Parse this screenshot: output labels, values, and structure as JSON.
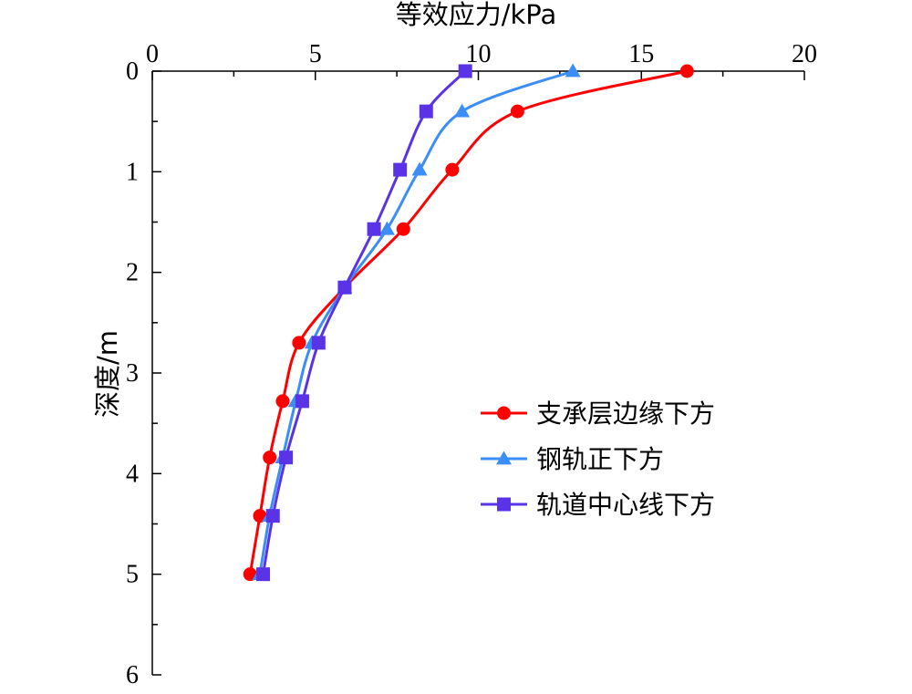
{
  "chart_data": {
    "type": "line",
    "title": "",
    "xlabel": "等效应力/kPa",
    "ylabel": "深度/m",
    "xlim": [
      0,
      20
    ],
    "ylim": [
      0,
      6
    ],
    "y_inverted": true,
    "x_axis_position": "top",
    "x_ticks": [
      "0",
      "5",
      "10",
      "15",
      "20"
    ],
    "y_ticks": [
      "0",
      "1",
      "2",
      "3",
      "4",
      "5",
      "6"
    ],
    "legend_position": "right-center",
    "series": [
      {
        "name": "支承层边缘下方",
        "color": "#ff0000",
        "marker": "circle",
        "points": [
          [
            16.4,
            0.0
          ],
          [
            11.2,
            0.4
          ],
          [
            9.2,
            0.98
          ],
          [
            7.7,
            1.57
          ],
          [
            5.9,
            2.15
          ],
          [
            4.5,
            2.7
          ],
          [
            4.0,
            3.28
          ],
          [
            3.6,
            3.84
          ],
          [
            3.3,
            4.42
          ],
          [
            3.0,
            5.0
          ]
        ]
      },
      {
        "name": "钢轨正下方",
        "color": "#3a8ef6",
        "marker": "triangle",
        "points": [
          [
            12.9,
            0.0
          ],
          [
            9.5,
            0.4
          ],
          [
            8.2,
            0.98
          ],
          [
            7.2,
            1.57
          ],
          [
            5.9,
            2.15
          ],
          [
            4.9,
            2.7
          ],
          [
            4.4,
            3.28
          ],
          [
            4.0,
            3.84
          ],
          [
            3.6,
            4.42
          ],
          [
            3.3,
            5.0
          ]
        ]
      },
      {
        "name": "轨道中心线下方",
        "color": "#5a33e6",
        "marker": "square",
        "points": [
          [
            9.6,
            0.0
          ],
          [
            8.4,
            0.4
          ],
          [
            7.6,
            0.98
          ],
          [
            6.8,
            1.57
          ],
          [
            5.9,
            2.15
          ],
          [
            5.1,
            2.7
          ],
          [
            4.6,
            3.28
          ],
          [
            4.1,
            3.84
          ],
          [
            3.7,
            4.42
          ],
          [
            3.4,
            5.0
          ]
        ]
      }
    ]
  }
}
